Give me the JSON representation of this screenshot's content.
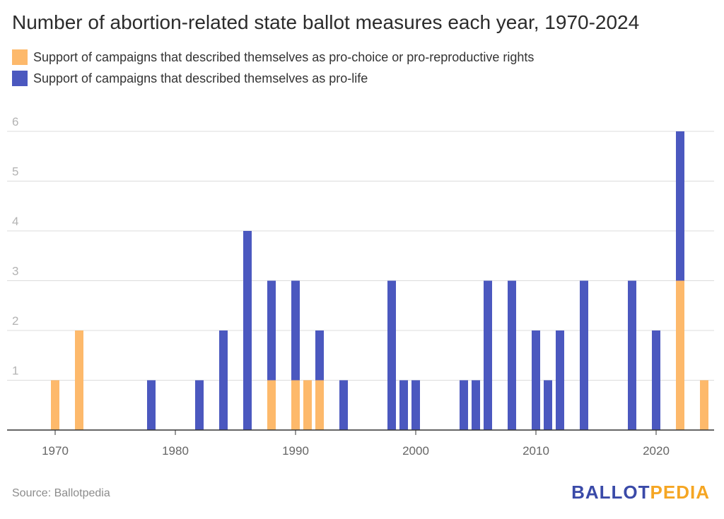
{
  "chart_data": {
    "type": "bar",
    "stacked": true,
    "title": "Number of abortion-related state ballot measures each year, 1970-2024",
    "xlabel": "",
    "ylabel": "",
    "x_ticks": [
      1970,
      1980,
      1990,
      2000,
      2010,
      2020
    ],
    "y_ticks": [
      1,
      2,
      3,
      4,
      5,
      6
    ],
    "ylim": [
      0,
      6
    ],
    "xlim": [
      1968,
      2025
    ],
    "grid": true,
    "legend_position": "top-left",
    "series": [
      {
        "name": "Support of campaigns that described themselves as pro-choice or pro-reproductive rights",
        "color": "#fdb96b",
        "points": [
          {
            "x": 1970,
            "y": 1
          },
          {
            "x": 1972,
            "y": 2
          },
          {
            "x": 1988,
            "y": 1
          },
          {
            "x": 1990,
            "y": 1
          },
          {
            "x": 1991,
            "y": 1
          },
          {
            "x": 1992,
            "y": 1
          },
          {
            "x": 2022,
            "y": 3
          },
          {
            "x": 2024,
            "y": 1
          }
        ]
      },
      {
        "name": "Support of campaigns that described themselves as pro-life",
        "color": "#4b58bf",
        "points": [
          {
            "x": 1978,
            "y": 1
          },
          {
            "x": 1982,
            "y": 1
          },
          {
            "x": 1984,
            "y": 2
          },
          {
            "x": 1986,
            "y": 4
          },
          {
            "x": 1988,
            "y": 2
          },
          {
            "x": 1990,
            "y": 2
          },
          {
            "x": 1992,
            "y": 1
          },
          {
            "x": 1994,
            "y": 1
          },
          {
            "x": 1998,
            "y": 3
          },
          {
            "x": 1999,
            "y": 1
          },
          {
            "x": 2000,
            "y": 1
          },
          {
            "x": 2004,
            "y": 1
          },
          {
            "x": 2005,
            "y": 1
          },
          {
            "x": 2006,
            "y": 3
          },
          {
            "x": 2008,
            "y": 3
          },
          {
            "x": 2010,
            "y": 2
          },
          {
            "x": 2011,
            "y": 1
          },
          {
            "x": 2012,
            "y": 2
          },
          {
            "x": 2014,
            "y": 3
          },
          {
            "x": 2018,
            "y": 3
          },
          {
            "x": 2020,
            "y": 2
          },
          {
            "x": 2022,
            "y": 3
          }
        ]
      }
    ]
  },
  "source": "Source: Ballotpedia",
  "logo": {
    "part1": "BALLOT",
    "part2": "PEDIA",
    "color1": "#3a4aa8",
    "color2": "#f5a623"
  }
}
